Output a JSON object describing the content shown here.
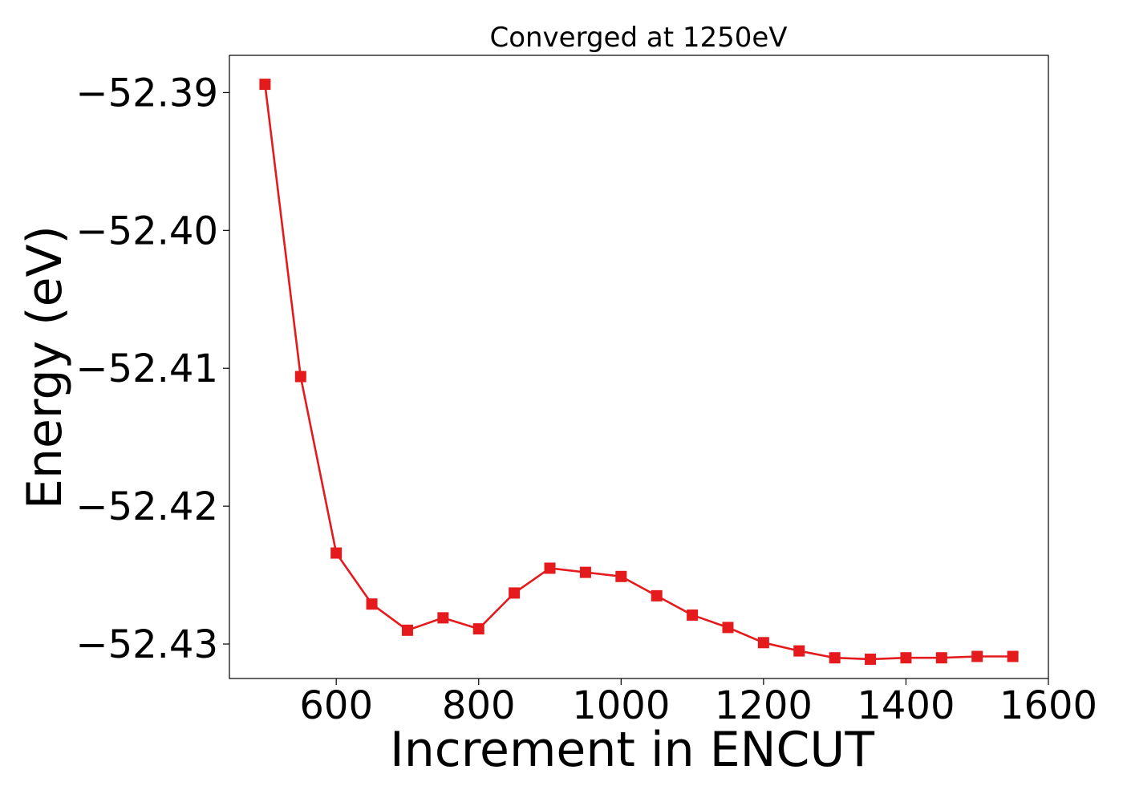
{
  "chart_data": {
    "type": "line",
    "title": "Converged at 1250eV",
    "xlabel": "Increment in ENCUT",
    "ylabel": "Energy (eV)",
    "xlim": [
      450,
      1600
    ],
    "ylim": [
      -52.4325,
      -52.3873
    ],
    "xticks": [
      600,
      800,
      1000,
      1200,
      1400,
      1600
    ],
    "xtick_labels": [
      "600",
      "800",
      "1000",
      "1200",
      "1400",
      "1600"
    ],
    "yticks": [
      -52.39,
      -52.4,
      -52.41,
      -52.42,
      -52.43
    ],
    "ytick_labels": [
      "−52.39",
      "−52.40",
      "−52.41",
      "−52.42",
      "−52.43"
    ],
    "grid": false,
    "series": [
      {
        "color": "#e41a1c",
        "marker": "square",
        "x": [
          500,
          550,
          600,
          650,
          700,
          750,
          800,
          850,
          900,
          950,
          1000,
          1050,
          1100,
          1150,
          1200,
          1250,
          1300,
          1350,
          1400,
          1450,
          1500,
          1550
        ],
        "y": [
          -52.3894,
          -52.4106,
          -52.4234,
          -52.4271,
          -52.429,
          -52.4281,
          -52.4289,
          -52.4263,
          -52.4245,
          -52.4248,
          -52.4251,
          -52.4265,
          -52.4279,
          -52.4288,
          -52.4299,
          -52.4305,
          -52.431,
          -52.4311,
          -52.431,
          -52.431,
          -52.4309,
          -52.4309
        ]
      }
    ]
  }
}
